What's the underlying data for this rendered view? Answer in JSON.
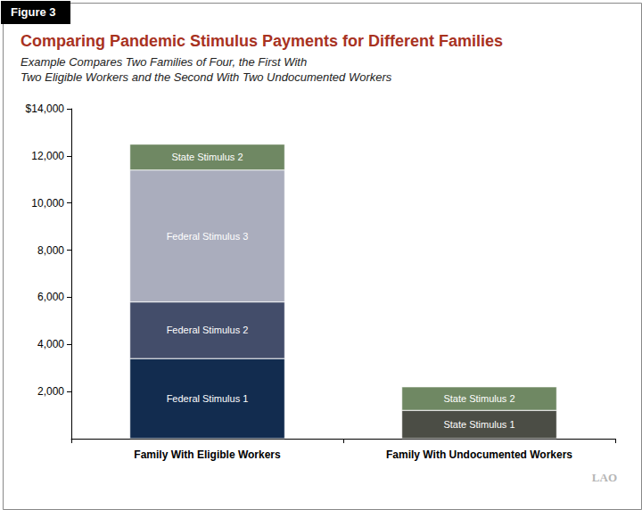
{
  "chart_data": {
    "type": "bar",
    "stacked": true,
    "figure_label": "Figure 3",
    "title": "Comparing Pandemic Stimulus Payments for Different Families",
    "subtitle": "Example Compares Two Families of Four, the First With\nTwo Eligible Workers and the Second With Two Undocumented Workers",
    "logo": "LAO",
    "categories": [
      "Family With Eligible Workers",
      "Family With Undocumented Workers"
    ],
    "series": [
      {
        "name": "Federal Stimulus 1",
        "color": "#122c4f",
        "values": [
          3400,
          null
        ]
      },
      {
        "name": "Federal Stimulus 2",
        "color": "#434d6a",
        "values": [
          2400,
          null
        ]
      },
      {
        "name": "Federal Stimulus 3",
        "color": "#aaadbd",
        "values": [
          5600,
          null
        ]
      },
      {
        "name": "State Stimulus 1",
        "color": "#4b4d45",
        "values": [
          null,
          1200
        ]
      },
      {
        "name": "State Stimulus 2",
        "color": "#6f8863",
        "values": [
          1100,
          1000
        ]
      }
    ],
    "ylim": [
      0,
      14000
    ],
    "yticks": [
      {
        "value": 2000,
        "label": "2,000"
      },
      {
        "value": 4000,
        "label": "4,000"
      },
      {
        "value": 6000,
        "label": "6,000"
      },
      {
        "value": 8000,
        "label": "8,000"
      },
      {
        "value": 10000,
        "label": "10,000"
      },
      {
        "value": 12000,
        "label": "12,000"
      },
      {
        "value": 14000,
        "label": "$14,000"
      }
    ],
    "grid": false
  }
}
